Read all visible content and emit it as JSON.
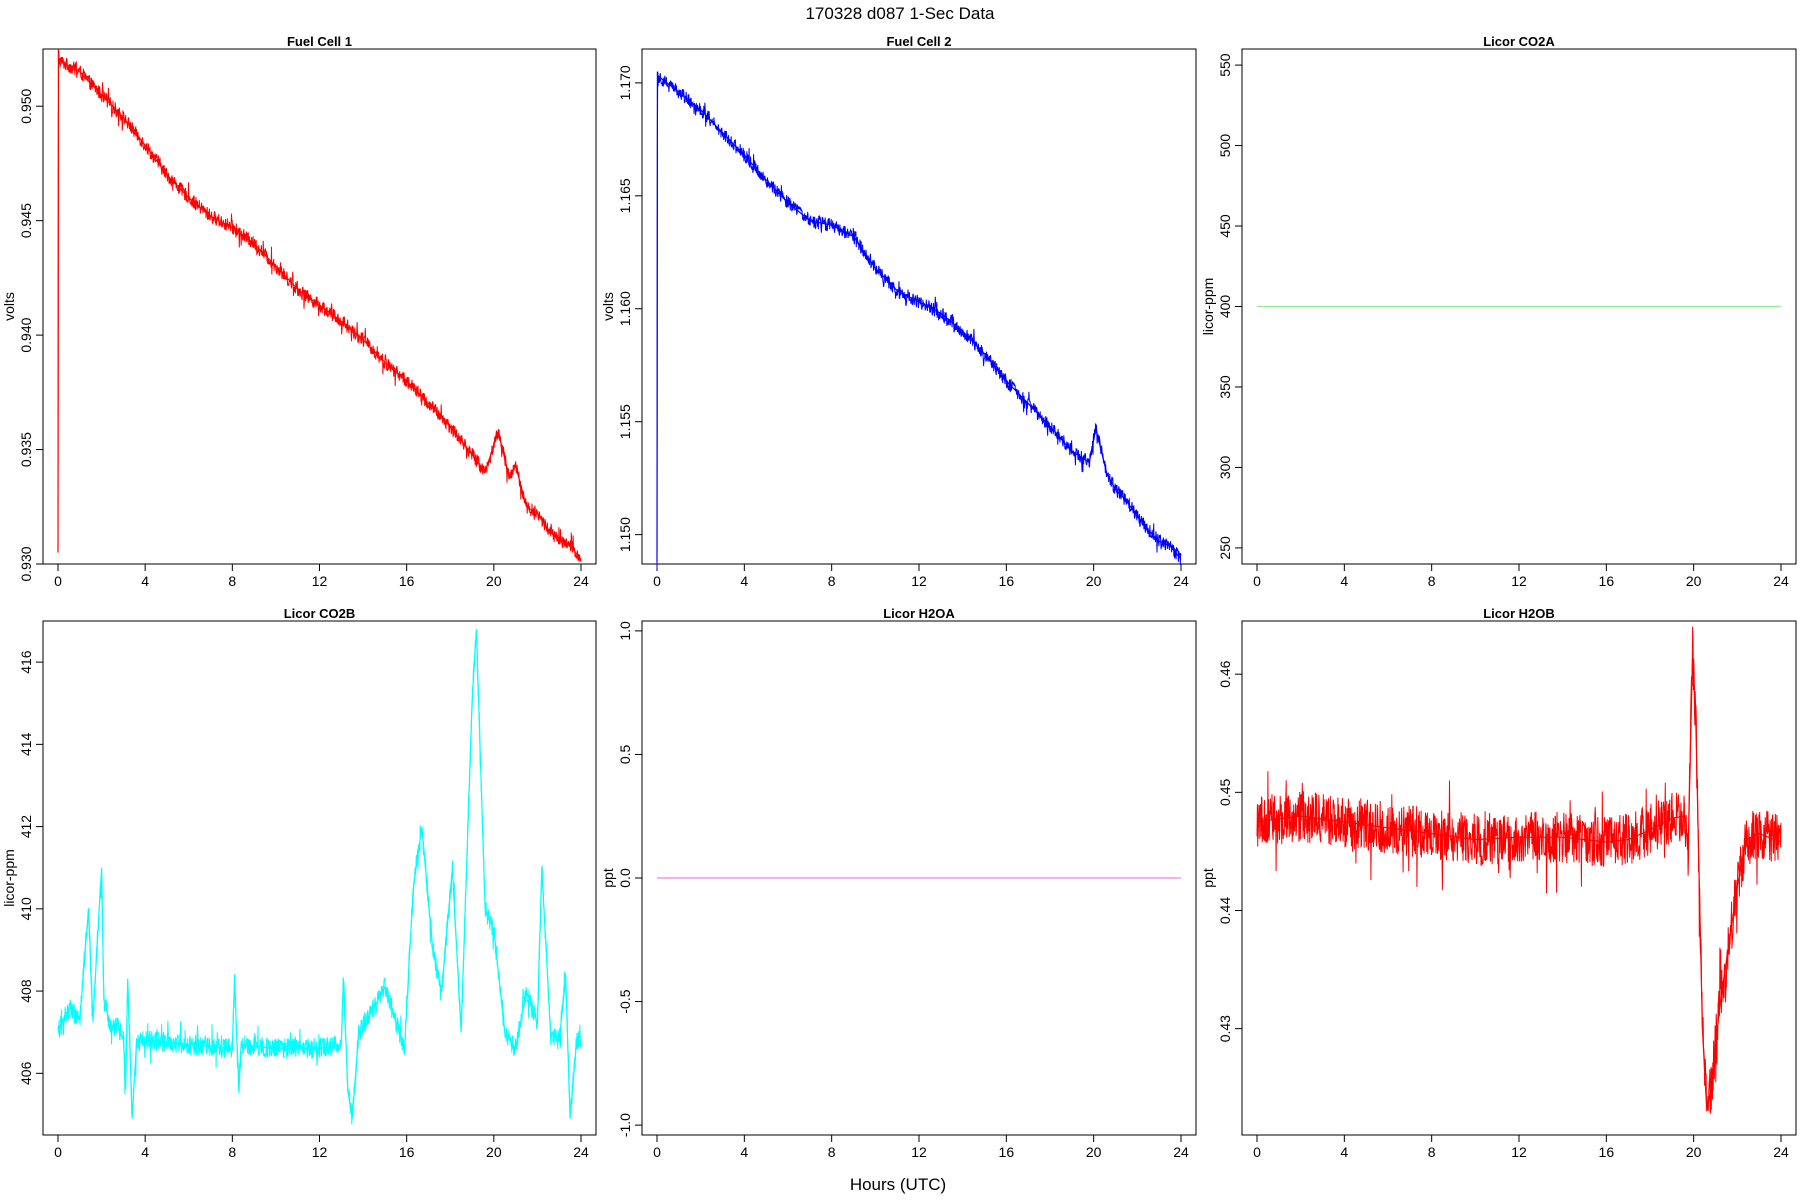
{
  "figure": {
    "title": "170328   d087   1-Sec Data",
    "xlabel": "Hours (UTC)"
  },
  "chart_data": [
    {
      "type": "line",
      "title": "Fuel Cell 1",
      "ylabel": "volts",
      "color": "#ff0000",
      "xlim": [
        0,
        24
      ],
      "ylim": [
        0.93,
        0.9525
      ],
      "xticks": [
        0,
        4,
        8,
        12,
        16,
        20,
        24
      ],
      "yticks": [
        0.93,
        0.935,
        0.94,
        0.945,
        0.95
      ],
      "ytick_labels": [
        "0.930",
        "0.935",
        "0.940",
        "0.945",
        "0.950"
      ],
      "noise": 0.0003,
      "x": [
        0,
        0.02,
        0.05,
        1,
        2,
        3,
        4,
        5,
        6,
        7,
        8,
        9,
        10,
        11,
        12,
        13,
        14,
        15,
        16,
        17,
        18,
        19,
        19.6,
        20.2,
        20.7,
        21,
        21.5,
        22,
        22.5,
        23,
        23.5,
        24
      ],
      "values": [
        0.9305,
        0.9525,
        0.952,
        0.9515,
        0.9505,
        0.9495,
        0.9483,
        0.947,
        0.946,
        0.9452,
        0.9447,
        0.944,
        0.943,
        0.942,
        0.9413,
        0.9406,
        0.9398,
        0.9388,
        0.938,
        0.937,
        0.936,
        0.9348,
        0.934,
        0.9358,
        0.9338,
        0.9343,
        0.9325,
        0.9322,
        0.9315,
        0.931,
        0.9308,
        0.9302
      ]
    },
    {
      "type": "line",
      "title": "Fuel Cell 2",
      "ylabel": "volts",
      "color": "#0000ff",
      "xlim": [
        0,
        24
      ],
      "ylim": [
        1.1487,
        1.1715
      ],
      "xticks": [
        0,
        4,
        8,
        12,
        16,
        20,
        24
      ],
      "yticks": [
        1.15,
        1.155,
        1.16,
        1.165,
        1.17
      ],
      "ytick_labels": [
        "1.150",
        "1.155",
        "1.160",
        "1.165",
        "1.170"
      ],
      "noise": 0.0003,
      "x": [
        0,
        0.02,
        0.05,
        1,
        2,
        3,
        4,
        5,
        6,
        7,
        8,
        9,
        10,
        11,
        12,
        13,
        14,
        15,
        16,
        17,
        18,
        19,
        19.8,
        20.1,
        20.6,
        21,
        21.5,
        22,
        22.5,
        23,
        23.5,
        24
      ],
      "values": [
        1.1488,
        1.1705,
        1.1703,
        1.1696,
        1.1688,
        1.1678,
        1.1668,
        1.1657,
        1.1647,
        1.1639,
        1.1637,
        1.1632,
        1.1618,
        1.1608,
        1.1603,
        1.1598,
        1.159,
        1.158,
        1.1568,
        1.1558,
        1.1548,
        1.1537,
        1.1532,
        1.1547,
        1.1527,
        1.152,
        1.1515,
        1.1508,
        1.1502,
        1.1497,
        1.1495,
        1.1489
      ]
    },
    {
      "type": "line",
      "title": "Licor CO2A",
      "ylabel": "licor-ppm",
      "color": "#90ee90",
      "xlim": [
        0,
        24
      ],
      "ylim": [
        240,
        560
      ],
      "xticks": [
        0,
        4,
        8,
        12,
        16,
        20,
        24
      ],
      "yticks": [
        250,
        300,
        350,
        400,
        450,
        500,
        550
      ],
      "ytick_labels": [
        "250",
        "300",
        "350",
        "400",
        "450",
        "500",
        "550"
      ],
      "noise": 0,
      "x": [
        0,
        24
      ],
      "values": [
        400,
        400
      ]
    },
    {
      "type": "line",
      "title": "Licor CO2B",
      "ylabel": "licor-ppm",
      "color": "#00ffff",
      "xlim": [
        0,
        24
      ],
      "ylim": [
        404.5,
        417
      ],
      "xticks": [
        0,
        4,
        8,
        12,
        16,
        20,
        24
      ],
      "yticks": [
        406,
        408,
        410,
        412,
        414,
        416
      ],
      "ytick_labels": [
        "406",
        "408",
        "410",
        "412",
        "414",
        "416"
      ],
      "noise": 0.25,
      "x": [
        0,
        0.5,
        1.0,
        1.4,
        1.6,
        2.0,
        2.1,
        2.4,
        3.0,
        3.1,
        3.2,
        3.4,
        3.6,
        4,
        6,
        8.0,
        8.1,
        8.3,
        8.4,
        10,
        12,
        13.0,
        13.1,
        13.3,
        13.5,
        13.8,
        14.5,
        15,
        15.9,
        16.3,
        16.7,
        17.2,
        17.6,
        18.1,
        18.5,
        19.0,
        19.2,
        19.6,
        20.0,
        20.5,
        21.0,
        21.5,
        22.0,
        22.2,
        22.6,
        23.0,
        23.3,
        23.5,
        23.8,
        24
      ],
      "values": [
        407.0,
        407.6,
        407.3,
        410.0,
        407.3,
        411.0,
        407.8,
        407.2,
        407.0,
        405.6,
        408.3,
        404.9,
        406.7,
        406.8,
        406.7,
        406.6,
        408.3,
        405.6,
        406.7,
        406.6,
        406.6,
        406.7,
        408.3,
        405.6,
        404.9,
        407.0,
        407.6,
        408.1,
        406.6,
        410.5,
        412.0,
        409.0,
        408.0,
        411.0,
        407.0,
        415.0,
        416.8,
        410.0,
        409.5,
        407.0,
        406.6,
        408.0,
        407.2,
        411.0,
        407.0,
        406.8,
        408.3,
        404.9,
        406.8,
        406.8
      ]
    },
    {
      "type": "line",
      "title": "Licor H2OA",
      "ylabel": "ppt",
      "color": "#ee82ee",
      "xlim": [
        0,
        24
      ],
      "ylim": [
        -1.04,
        1.04
      ],
      "xticks": [
        0,
        4,
        8,
        12,
        16,
        20,
        24
      ],
      "yticks": [
        -1.0,
        -0.5,
        0.0,
        0.5,
        1.0
      ],
      "ytick_labels": [
        "-1.0",
        "-0.5",
        "0.0",
        "0.5",
        "1.0"
      ],
      "noise": 0,
      "x": [
        0,
        24
      ],
      "values": [
        0,
        0
      ]
    },
    {
      "type": "line",
      "title": "Licor H2OB",
      "ylabel": "ppt",
      "color": "#ff0000",
      "xlim": [
        0,
        24
      ],
      "ylim": [
        0.421,
        0.4645
      ],
      "xticks": [
        0,
        4,
        8,
        12,
        16,
        20,
        24
      ],
      "yticks": [
        0.43,
        0.44,
        0.45,
        0.46
      ],
      "ytick_labels": [
        "0.43",
        "0.44",
        "0.45",
        "0.46"
      ],
      "noise": 0.0022,
      "x": [
        0,
        2,
        4,
        6,
        8,
        10,
        12,
        14,
        16,
        17,
        18,
        19,
        19.6,
        19.75,
        19.95,
        20.1,
        20.4,
        20.6,
        20.8,
        21.2,
        21.6,
        22.0,
        22.4,
        23.0,
        24
      ],
      "values": [
        0.4475,
        0.448,
        0.4475,
        0.447,
        0.4465,
        0.446,
        0.4462,
        0.4462,
        0.4458,
        0.446,
        0.4468,
        0.4478,
        0.448,
        0.445,
        0.462,
        0.456,
        0.43,
        0.423,
        0.425,
        0.432,
        0.437,
        0.442,
        0.446,
        0.4465,
        0.4458
      ]
    }
  ]
}
